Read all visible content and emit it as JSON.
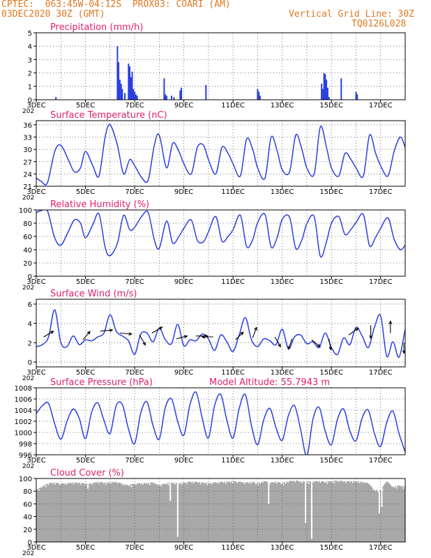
{
  "header": {
    "line1": "CPTEC:  063:45W-04:12S  PROX03: COARI (AM)",
    "line2": "03DEC2020 30Z (GMT)",
    "grid_note": "Vertical Grid Line: 30Z",
    "code": "TQ0126L028"
  },
  "colors": {
    "header": "#e07820",
    "panel_title": "#e0206e",
    "series": "#2a3fe0",
    "cloud": "#a8a8a8",
    "grid": "#555555",
    "arrow": "#000000"
  },
  "x_axis": {
    "start_day": 3,
    "end_day": 18,
    "tick_days": [
      3,
      5,
      7,
      9,
      11,
      13,
      15,
      17
    ],
    "tick_labels": [
      "3DEC",
      "5DEC",
      "7DEC",
      "9DEC",
      "11DEC",
      "13DEC",
      "15DEC",
      "17DEC"
    ],
    "vertical_gridlines_at_days": [
      3,
      4,
      5,
      6,
      7,
      8,
      9,
      10,
      11,
      12,
      13,
      14,
      15,
      16,
      17,
      18
    ],
    "partial_year_label": "202"
  },
  "chart_data": [
    {
      "id": "precip",
      "type": "bar",
      "title": "Precipitation (mm/h)",
      "ylim": [
        0,
        5
      ],
      "yticks": [
        0,
        1,
        2,
        3,
        4,
        5
      ],
      "grid": true,
      "x": [
        3.8,
        6.3,
        6.35,
        6.4,
        6.45,
        6.5,
        6.6,
        6.75,
        6.8,
        6.85,
        6.9,
        6.95,
        7.0,
        7.05,
        7.1,
        8.2,
        8.25,
        8.3,
        8.5,
        8.6,
        8.85,
        8.9,
        9.9,
        12.0,
        12.05,
        12.1,
        14.6,
        14.65,
        14.7,
        14.75,
        14.8,
        14.85,
        14.9,
        15.4,
        16.0,
        16.05
      ],
      "values": [
        0.2,
        4.0,
        2.8,
        1.5,
        1.2,
        0.8,
        0.5,
        2.7,
        2.5,
        1.7,
        2.1,
        0.8,
        0.6,
        0.4,
        0.3,
        1.6,
        0.4,
        0.3,
        0.3,
        0.2,
        0.7,
        0.9,
        1.1,
        0.8,
        0.6,
        0.3,
        1.2,
        0.8,
        2.0,
        1.9,
        1.5,
        0.9,
        0.2,
        1.6,
        0.6,
        0.4
      ]
    },
    {
      "id": "temp",
      "type": "line",
      "title": "Surface Temperature (nC)",
      "ylim": [
        21,
        37
      ],
      "yticks": [
        21,
        24,
        27,
        30,
        33,
        36
      ],
      "grid": true,
      "x": [
        3.0,
        3.2,
        3.45,
        3.75,
        4.0,
        4.3,
        4.55,
        4.8,
        5.0,
        5.3,
        5.55,
        5.8,
        6.0,
        6.3,
        6.55,
        6.8,
        7.0,
        7.3,
        7.55,
        7.8,
        8.0,
        8.3,
        8.55,
        8.8,
        9.0,
        9.3,
        9.55,
        9.8,
        10.0,
        10.3,
        10.55,
        10.8,
        11.0,
        11.3,
        11.55,
        11.8,
        12.0,
        12.3,
        12.55,
        12.8,
        13.0,
        13.3,
        13.55,
        13.8,
        14.0,
        14.3,
        14.55,
        14.8,
        15.0,
        15.3,
        15.55,
        15.8,
        16.0,
        16.3,
        16.55,
        16.8,
        17.0,
        17.3,
        17.55,
        17.8,
        18.0
      ],
      "values": [
        23.0,
        22.2,
        21.8,
        29.5,
        31.0,
        27.5,
        24.5,
        25.5,
        29.5,
        26.0,
        23.5,
        33.0,
        36.0,
        31.0,
        24.0,
        27.5,
        26.0,
        23.0,
        22.5,
        31.0,
        33.5,
        25.5,
        31.5,
        29.5,
        26.5,
        24.0,
        30.5,
        31.0,
        27.5,
        24.0,
        30.5,
        29.0,
        26.5,
        23.5,
        32.5,
        30.0,
        25.5,
        23.0,
        33.0,
        29.5,
        25.0,
        24.5,
        33.5,
        30.0,
        25.5,
        24.0,
        35.5,
        30.5,
        25.5,
        23.5,
        29.0,
        27.5,
        25.5,
        23.5,
        33.5,
        29.0,
        26.0,
        23.5,
        29.5,
        33.0,
        30.5
      ]
    },
    {
      "id": "rh",
      "type": "line",
      "title": "Relative Humidity (%)",
      "ylim": [
        0,
        100
      ],
      "yticks": [
        0,
        20,
        40,
        60,
        80,
        100
      ],
      "grid": true,
      "x": [
        3.0,
        3.2,
        3.45,
        3.75,
        4.0,
        4.3,
        4.55,
        4.8,
        5.0,
        5.3,
        5.55,
        5.8,
        6.0,
        6.3,
        6.55,
        6.8,
        7.0,
        7.3,
        7.55,
        7.8,
        8.0,
        8.3,
        8.55,
        8.8,
        9.0,
        9.3,
        9.55,
        9.8,
        10.0,
        10.3,
        10.55,
        10.8,
        11.0,
        11.3,
        11.55,
        11.8,
        12.0,
        12.3,
        12.55,
        12.8,
        13.0,
        13.3,
        13.55,
        13.8,
        14.0,
        14.3,
        14.55,
        14.8,
        15.0,
        15.3,
        15.55,
        15.8,
        16.0,
        16.3,
        16.55,
        16.8,
        17.0,
        17.3,
        17.55,
        17.8,
        18.0
      ],
      "values": [
        96,
        99,
        99,
        58,
        47,
        67,
        85,
        80,
        58,
        78,
        94,
        44,
        31,
        50,
        92,
        70,
        74,
        91,
        96,
        55,
        42,
        83,
        50,
        60,
        72,
        85,
        54,
        52,
        67,
        90,
        53,
        60,
        70,
        92,
        45,
        55,
        81,
        93,
        44,
        59,
        86,
        89,
        42,
        55,
        79,
        90,
        30,
        52,
        80,
        90,
        63,
        71,
        81,
        93,
        46,
        59,
        72,
        88,
        56,
        40,
        47
      ]
    },
    {
      "id": "wind",
      "type": "line",
      "title": "Surface Wind (m/s)",
      "ylim": [
        -0.5,
        6.5
      ],
      "yticks": [
        0,
        2,
        4,
        6
      ],
      "grid": true,
      "x": [
        3.0,
        3.25,
        3.5,
        3.75,
        4.0,
        4.25,
        4.5,
        4.75,
        5.0,
        5.25,
        5.5,
        5.75,
        6.0,
        6.25,
        6.5,
        6.75,
        7.0,
        7.25,
        7.5,
        7.75,
        8.0,
        8.25,
        8.5,
        8.75,
        9.0,
        9.25,
        9.5,
        9.75,
        10.0,
        10.25,
        10.5,
        10.75,
        11.0,
        11.25,
        11.5,
        11.75,
        12.0,
        12.25,
        12.5,
        12.75,
        13.0,
        13.25,
        13.5,
        13.75,
        14.0,
        14.25,
        14.5,
        14.75,
        15.0,
        15.25,
        15.5,
        15.75,
        16.0,
        16.25,
        16.5,
        16.75,
        17.0,
        17.25,
        17.5,
        17.75,
        18.0
      ],
      "values": [
        1.6,
        1.8,
        2.6,
        5.4,
        2.0,
        1.6,
        2.7,
        1.8,
        2.3,
        2.2,
        2.6,
        3.0,
        4.9,
        3.2,
        2.7,
        2.2,
        0.8,
        2.9,
        3.0,
        2.1,
        3.5,
        2.3,
        1.9,
        3.9,
        1.7,
        2.3,
        2.2,
        2.9,
        2.4,
        1.2,
        2.8,
        2.1,
        1.1,
        2.8,
        4.6,
        2.3,
        1.6,
        2.4,
        2.2,
        1.8,
        3.4,
        1.4,
        2.6,
        2.8,
        1.9,
        2.1,
        1.5,
        3.0,
        1.5,
        0.8,
        2.5,
        1.8,
        3.6,
        2.7,
        1.5,
        3.6,
        4.8,
        0.6,
        2.1,
        0.5,
        3.4
      ],
      "arrows": [
        {
          "day": 3.3,
          "speed": 2.6,
          "dir_deg": 60
        },
        {
          "day": 4.9,
          "speed": 2.3,
          "dir_deg": 40
        },
        {
          "day": 5.6,
          "speed": 3.2,
          "dir_deg": 85
        },
        {
          "day": 6.4,
          "speed": 3.0,
          "dir_deg": 95
        },
        {
          "day": 7.2,
          "speed": 2.8,
          "dir_deg": 150
        },
        {
          "day": 7.7,
          "speed": 3.0,
          "dir_deg": 60
        },
        {
          "day": 8.7,
          "speed": 2.4,
          "dir_deg": 75
        },
        {
          "day": 9.5,
          "speed": 2.7,
          "dir_deg": 90
        },
        {
          "day": 10.2,
          "speed": 2.6,
          "dir_deg": 270
        },
        {
          "day": 11.1,
          "speed": 2.3,
          "dir_deg": 45
        },
        {
          "day": 11.8,
          "speed": 2.5,
          "dir_deg": 20
        },
        {
          "day": 12.7,
          "speed": 2.6,
          "dir_deg": 150
        },
        {
          "day": 13.4,
          "speed": 2.4,
          "dir_deg": 200
        },
        {
          "day": 14.2,
          "speed": 2.3,
          "dir_deg": 130
        },
        {
          "day": 14.9,
          "speed": 2.4,
          "dir_deg": 170
        },
        {
          "day": 15.7,
          "speed": 2.8,
          "dir_deg": 55
        },
        {
          "day": 16.6,
          "speed": 3.8,
          "dir_deg": 180
        },
        {
          "day": 17.4,
          "speed": 3.0,
          "dir_deg": 0
        },
        {
          "day": 17.95,
          "speed": 2.0,
          "dir_deg": 180
        }
      ]
    },
    {
      "id": "pres",
      "type": "line",
      "title": "Surface Pressure (hPa)",
      "extra_label": "Model Altitude: 55.7943 m",
      "ylim": [
        996,
        1008
      ],
      "yticks": [
        996,
        998,
        1000,
        1002,
        1004,
        1006,
        1008
      ],
      "grid": true,
      "x": [
        3.0,
        3.25,
        3.5,
        3.75,
        4.0,
        4.25,
        4.5,
        4.75,
        5.0,
        5.25,
        5.5,
        5.75,
        6.0,
        6.25,
        6.5,
        6.75,
        7.0,
        7.25,
        7.5,
        7.75,
        8.0,
        8.25,
        8.5,
        8.75,
        9.0,
        9.25,
        9.5,
        9.75,
        10.0,
        10.25,
        10.5,
        10.75,
        11.0,
        11.25,
        11.5,
        11.75,
        12.0,
        12.25,
        12.5,
        12.75,
        13.0,
        13.25,
        13.5,
        13.75,
        14.0,
        14.25,
        14.5,
        14.75,
        15.0,
        15.25,
        15.5,
        15.75,
        16.0,
        16.25,
        16.5,
        16.75,
        17.0,
        17.25,
        17.5,
        17.75,
        18.0
      ],
      "values": [
        1003.4,
        1004.8,
        1005.2,
        1001.5,
        998.8,
        1002.0,
        1004.2,
        1002.5,
        998.9,
        1003.6,
        1005.3,
        1002.2,
        999.8,
        1004.8,
        1005.0,
        1000.6,
        998.0,
        1003.5,
        1005.5,
        1001.2,
        998.8,
        1004.5,
        1006.0,
        1002.0,
        999.5,
        1005.0,
        1007.2,
        1002.5,
        999.0,
        1004.8,
        1006.8,
        1002.2,
        999.0,
        1004.3,
        1006.8,
        1001.2,
        997.8,
        1002.3,
        1004.3,
        1000.8,
        998.6,
        1003.0,
        1004.8,
        1000.5,
        995.8,
        1002.4,
        1004.5,
        1000.2,
        997.8,
        1002.4,
        1004.2,
        1000.3,
        998.5,
        1002.6,
        1004.0,
        999.8,
        997.5,
        1001.8,
        1003.8,
        999.8,
        996.5
      ]
    },
    {
      "id": "cloud",
      "type": "area",
      "title": "Cloud Cover (%)",
      "ylim": [
        0,
        100
      ],
      "yticks": [
        0,
        20,
        40,
        60,
        80,
        100
      ],
      "grid": true,
      "x": [
        3.0,
        3.25,
        3.5,
        3.75,
        4.0,
        4.25,
        4.5,
        4.75,
        5.0,
        5.25,
        5.5,
        5.75,
        6.0,
        6.25,
        6.5,
        6.75,
        7.0,
        7.25,
        7.5,
        7.75,
        8.0,
        8.25,
        8.5,
        8.75,
        9.0,
        9.25,
        9.5,
        9.75,
        10.0,
        10.25,
        10.5,
        10.75,
        11.0,
        11.25,
        11.5,
        11.75,
        12.0,
        12.25,
        12.5,
        12.75,
        13.0,
        13.25,
        13.5,
        13.75,
        14.0,
        14.25,
        14.5,
        14.75,
        15.0,
        15.25,
        15.5,
        15.75,
        16.0,
        16.25,
        16.5,
        16.75,
        17.0,
        17.25,
        17.5,
        17.75,
        18.0
      ],
      "values": [
        82,
        88,
        93,
        94,
        92,
        93,
        94,
        94,
        92,
        93,
        95,
        94,
        94,
        95,
        92,
        90,
        92,
        93,
        93,
        94,
        90,
        92,
        94,
        93,
        94,
        95,
        95,
        94,
        93,
        94,
        95,
        95,
        96,
        95,
        94,
        95,
        93,
        96,
        94,
        95,
        93,
        96,
        97,
        96,
        95,
        96,
        96,
        95,
        96,
        97,
        96,
        96,
        96,
        95,
        93,
        82,
        82,
        96,
        87,
        89,
        87
      ],
      "dips": [
        {
          "day": 5.1,
          "value": 84
        },
        {
          "day": 8.45,
          "value": 65
        },
        {
          "day": 8.75,
          "value": 8
        },
        {
          "day": 12.45,
          "value": 60
        },
        {
          "day": 13.95,
          "value": 30
        },
        {
          "day": 14.2,
          "value": 5
        },
        {
          "day": 16.95,
          "value": 45
        },
        {
          "day": 17.05,
          "value": 55
        }
      ]
    }
  ]
}
